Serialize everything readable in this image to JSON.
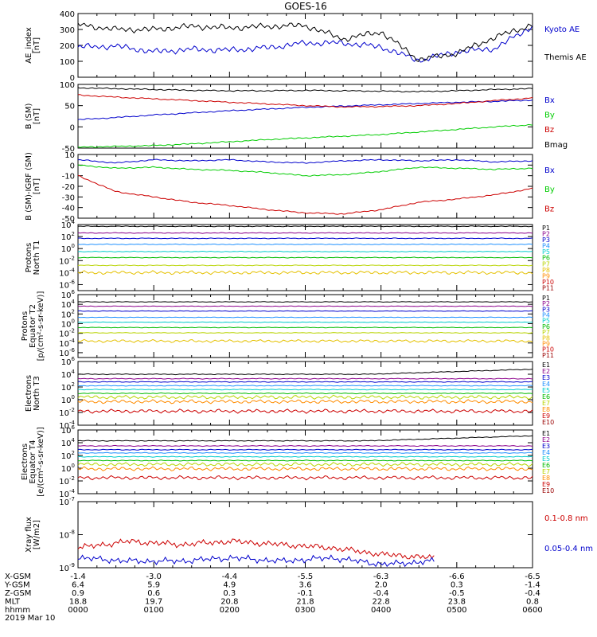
{
  "chart_data": [
    {
      "type": "line",
      "title": "GOES-16",
      "ylabel": [
        "AE_index",
        "[nT]"
      ],
      "ylim": [
        0,
        400
      ],
      "yticks": [
        "0",
        "100",
        "200",
        "300",
        "400"
      ],
      "x": [
        0.0,
        0.5,
        1.0,
        1.5,
        2.0,
        2.5,
        3.0,
        3.5,
        4.0,
        4.5,
        5.0,
        5.5,
        6.0
      ],
      "series": [
        {
          "name": "Kyoto AE",
          "color": "#0000cc",
          "values": [
            190,
            195,
            160,
            175,
            170,
            185,
            215,
            215,
            190,
            105,
            160,
            180,
            320
          ]
        },
        {
          "name": "Themis AE",
          "color": "#000000",
          "values": [
            330,
            300,
            300,
            320,
            310,
            320,
            325,
            240,
            285,
            110,
            150,
            250,
            330
          ]
        }
      ]
    },
    {
      "type": "line",
      "ylabel": [
        "B (SM)",
        "[nT]"
      ],
      "ylim": [
        -50,
        100
      ],
      "yticks": [
        "-50",
        "0",
        "50",
        "100"
      ],
      "x": [
        0.0,
        0.5,
        1.0,
        1.5,
        2.0,
        2.5,
        3.0,
        3.5,
        4.0,
        4.5,
        5.0,
        5.5,
        6.0
      ],
      "series": [
        {
          "name": "Bx",
          "color": "#0000cc",
          "values": [
            17,
            22,
            28,
            33,
            38,
            42,
            46,
            49,
            52,
            55,
            58,
            60,
            63
          ]
        },
        {
          "name": "By",
          "color": "#00cc00",
          "values": [
            -48,
            -46,
            -44,
            -40,
            -35,
            -30,
            -26,
            -22,
            -18,
            -12,
            -6,
            0,
            5
          ]
        },
        {
          "name": "Bz",
          "color": "#cc0000",
          "values": [
            75,
            70,
            66,
            62,
            58,
            54,
            50,
            47,
            48,
            50,
            55,
            62,
            68
          ]
        },
        {
          "name": "Bmag",
          "color": "#000000",
          "values": [
            92,
            90,
            88,
            86,
            85,
            85,
            86,
            85,
            84,
            83,
            85,
            88,
            90
          ]
        }
      ]
    },
    {
      "type": "line",
      "ylabel": [
        "B (SM)-IGRF (SM)",
        "[nT]"
      ],
      "ylim": [
        -50,
        10
      ],
      "yticks": [
        "-50",
        "-40",
        "-30",
        "-20",
        "-10",
        "0",
        "10"
      ],
      "x": [
        0.0,
        0.5,
        1.0,
        1.5,
        2.0,
        2.5,
        3.0,
        3.5,
        4.0,
        4.5,
        5.0,
        5.5,
        6.0
      ],
      "series": [
        {
          "name": "Bx",
          "color": "#0000cc",
          "values": [
            5,
            2,
            5,
            4,
            5,
            3,
            2,
            4,
            5,
            4,
            5,
            3,
            4
          ]
        },
        {
          "name": "By",
          "color": "#00cc00",
          "values": [
            0,
            -3,
            -2,
            -4,
            -5,
            -7,
            -10,
            -9,
            -6,
            -2,
            -3,
            -4,
            -3
          ]
        },
        {
          "name": "Bz",
          "color": "#cc0000",
          "values": [
            -10,
            -25,
            -30,
            -35,
            -38,
            -42,
            -45,
            -46,
            -42,
            -35,
            -32,
            -28,
            -22
          ]
        }
      ]
    },
    {
      "type": "line",
      "ylabel": [
        "Protons",
        "North T1"
      ],
      "ylim": [
        -7,
        4
      ],
      "yticks": [
        "10^4",
        "10^2",
        "10^0",
        "10^-2",
        "10^-4",
        "10^-6"
      ],
      "series": [
        {
          "name": "P1",
          "color": "#000000",
          "values": [
            3.7
          ]
        },
        {
          "name": "P2",
          "color": "#8b008b",
          "values": [
            2.6
          ]
        },
        {
          "name": "P3",
          "color": "#0000cc",
          "values": [
            1.7
          ]
        },
        {
          "name": "P4",
          "color": "#1e90ff",
          "values": [
            0.7
          ]
        },
        {
          "name": "P5",
          "color": "#00cccc",
          "values": [
            -0.5
          ]
        },
        {
          "name": "P6",
          "color": "#00bb00",
          "values": [
            -1.5
          ]
        },
        {
          "name": "P7",
          "color": "#b8d400",
          "values": [
            -2.8
          ]
        },
        {
          "name": "P8",
          "color": "#e5c100",
          "values": [
            -4.0
          ]
        },
        {
          "name": "P9",
          "color": "#ff8c00",
          "values": []
        },
        {
          "name": "P10",
          "color": "#cc0000",
          "values": []
        },
        {
          "name": "P11",
          "color": "#990000",
          "values": []
        }
      ]
    },
    {
      "type": "line",
      "ylabel": [
        "Protons",
        "Equator T2",
        "[p/(cm²-s-sr-keV)]"
      ],
      "ylim": [
        -7,
        6
      ],
      "yticks": [
        "10^6",
        "10^4",
        "10^2",
        "10^0",
        "10^-2",
        "10^-4",
        "10^-6"
      ],
      "series": [
        {
          "name": "P1",
          "color": "#000000",
          "values": [
            4.5
          ]
        },
        {
          "name": "P2",
          "color": "#8b008b",
          "values": [
            3.6
          ]
        },
        {
          "name": "P3",
          "color": "#0000cc",
          "values": [
            2.6
          ]
        },
        {
          "name": "P4",
          "color": "#1e90ff",
          "values": [
            1.3
          ]
        },
        {
          "name": "P5",
          "color": "#00cccc",
          "values": [
            0.3
          ]
        },
        {
          "name": "P6",
          "color": "#00bb00",
          "values": [
            -0.8
          ]
        },
        {
          "name": "P7",
          "color": "#b8d400",
          "values": [
            -1.9
          ]
        },
        {
          "name": "P8",
          "color": "#e5c100",
          "values": [
            -3.6
          ]
        },
        {
          "name": "P9",
          "color": "#ff8c00",
          "values": []
        },
        {
          "name": "P10",
          "color": "#cc0000",
          "values": []
        },
        {
          "name": "P11",
          "color": "#990000",
          "values": []
        }
      ]
    },
    {
      "type": "line",
      "ylabel": [
        "Electrons",
        "North T3"
      ],
      "ylim": [
        -4,
        6
      ],
      "yticks": [
        "10^6",
        "10^4",
        "10^2",
        "10^0",
        "10^-2",
        "10^-4"
      ],
      "series": [
        {
          "name": "E1",
          "color": "#000000",
          "values": [
            4.0
          ]
        },
        {
          "name": "E2",
          "color": "#8b008b",
          "values": [
            3.3
          ]
        },
        {
          "name": "E3",
          "color": "#0000cc",
          "values": [
            2.8
          ]
        },
        {
          "name": "E4",
          "color": "#1e90ff",
          "values": [
            2.2
          ]
        },
        {
          "name": "E5",
          "color": "#00cccc",
          "values": [
            1.6
          ]
        },
        {
          "name": "E6",
          "color": "#00bb00",
          "values": [
            1.0
          ]
        },
        {
          "name": "E7",
          "color": "#b8d400",
          "values": [
            0.4
          ]
        },
        {
          "name": "E8",
          "color": "#ff8c00",
          "values": [
            -0.3
          ]
        },
        {
          "name": "E9",
          "color": "#cc0000",
          "values": [
            -1.8
          ]
        },
        {
          "name": "E10",
          "color": "#990000",
          "values": []
        }
      ]
    },
    {
      "type": "line",
      "ylabel": [
        "Electrons",
        "Equator T4",
        "[e/(cm²-s-sr-keV)]"
      ],
      "ylim": [
        -4,
        6
      ],
      "yticks": [
        "10^6",
        "10^4",
        "10^2",
        "10^0",
        "10^-2",
        "10^-4"
      ],
      "series": [
        {
          "name": "E1",
          "color": "#000000",
          "values": [
            4.3
          ]
        },
        {
          "name": "E2",
          "color": "#8b008b",
          "values": [
            3.5
          ]
        },
        {
          "name": "E3",
          "color": "#0000cc",
          "values": [
            2.9
          ]
        },
        {
          "name": "E4",
          "color": "#1e90ff",
          "values": [
            2.4
          ]
        },
        {
          "name": "E5",
          "color": "#00cccc",
          "values": [
            1.8
          ]
        },
        {
          "name": "E6",
          "color": "#00bb00",
          "values": [
            1.2
          ]
        },
        {
          "name": "E7",
          "color": "#b8d400",
          "values": [
            0.6
          ]
        },
        {
          "name": "E8",
          "color": "#ff8c00",
          "values": [
            -0.1
          ]
        },
        {
          "name": "E9",
          "color": "#cc0000",
          "values": [
            -1.5
          ]
        },
        {
          "name": "E10",
          "color": "#990000",
          "values": []
        }
      ]
    },
    {
      "type": "line",
      "ylabel": [
        "Xray flux",
        "[W/m2]"
      ],
      "ylim": [
        -9,
        -7
      ],
      "yticks": [
        "10^-7",
        "10^-8",
        "10^-9"
      ],
      "series": [
        {
          "name": "0.1-0.8 nm",
          "color": "#cc0000",
          "values": [
            -8.4,
            -8.2,
            -8.3,
            -8.2,
            -8.3,
            -8.4,
            -8.6,
            -8.7
          ]
        },
        {
          "name": "0.05-0.4 nm",
          "color": "#0000cc",
          "values": [
            -8.7,
            -8.8,
            -8.8,
            -8.7,
            -8.8,
            -8.7,
            -8.9,
            -8.8
          ]
        }
      ]
    }
  ],
  "orbit_table": {
    "row_labels": [
      "X-GSM",
      "Y-GSM",
      "Z-GSM",
      "MLT",
      "hhmm"
    ],
    "columns": [
      [
        "-1.4",
        "6.4",
        "0.9",
        "18.8",
        "0000"
      ],
      [
        "-3.0",
        "5.9",
        "0.6",
        "19.7",
        "0100"
      ],
      [
        "-4.4",
        "4.9",
        "0.3",
        "20.8",
        "0200"
      ],
      [
        "-5.5",
        "3.6",
        "-0.1",
        "21.8",
        "0300"
      ],
      [
        "-6.3",
        "2.0",
        "-0.4",
        "22.8",
        "0400"
      ],
      [
        "-6.6",
        "0.3",
        "-0.5",
        "23.8",
        "0500"
      ],
      [
        "-6.5",
        "-1.4",
        "-0.4",
        "0.8",
        "0600"
      ]
    ],
    "date": "2019 Mar 10"
  }
}
